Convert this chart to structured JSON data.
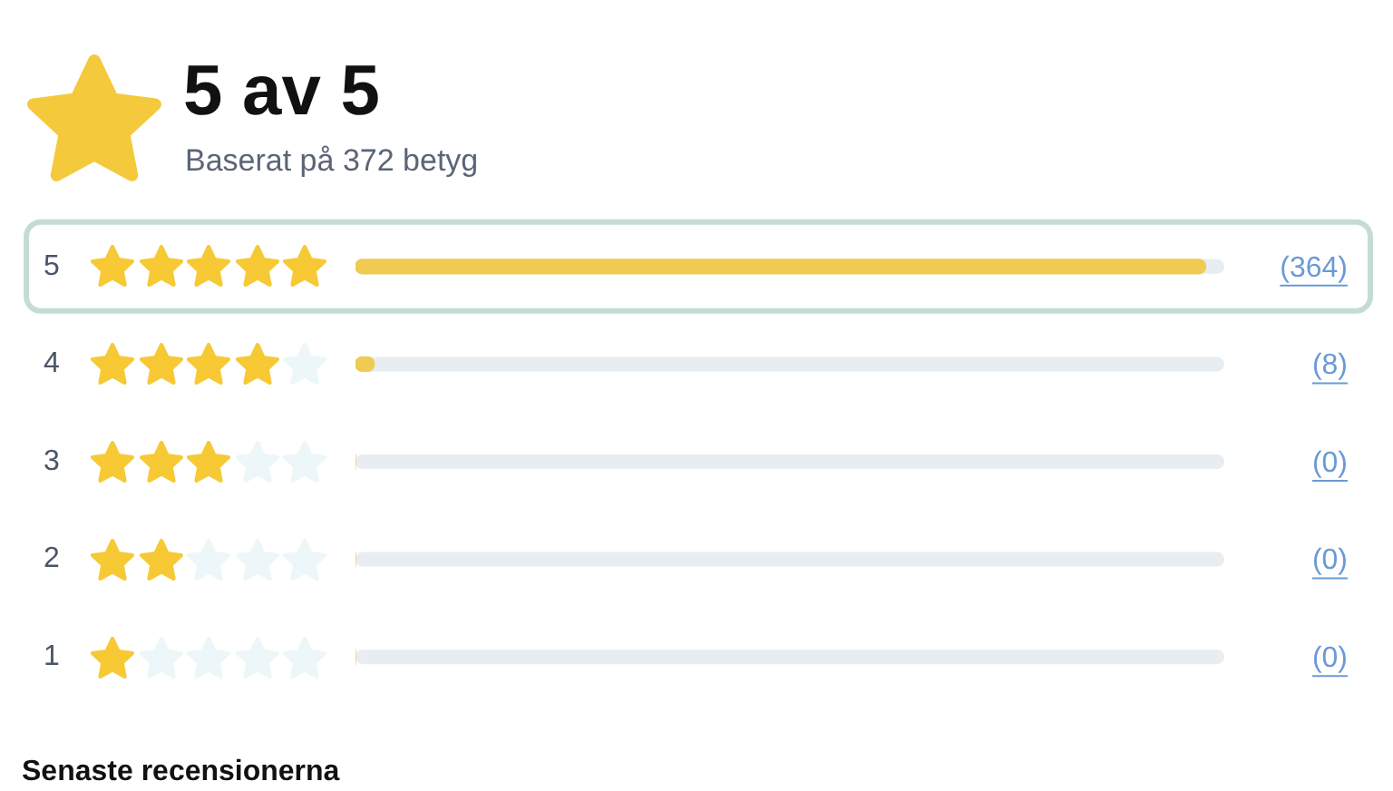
{
  "chart_data": {
    "type": "bar",
    "orientation": "horizontal",
    "title": "5 av 5",
    "subtitle": "Baserat på 372 betyg",
    "annotations": [
      "Senaste recensionerna"
    ],
    "categories": [
      "5",
      "4",
      "3",
      "2",
      "1"
    ],
    "values": [
      364,
      8,
      0,
      0,
      0
    ],
    "color": "#efcb52",
    "value_labels": [
      "(364)",
      "(8)",
      "(0)",
      "(0)",
      "(0)"
    ],
    "xlim": [
      0,
      372
    ],
    "tick_labels": "y",
    "grid": false,
    "legend": false
  }
}
